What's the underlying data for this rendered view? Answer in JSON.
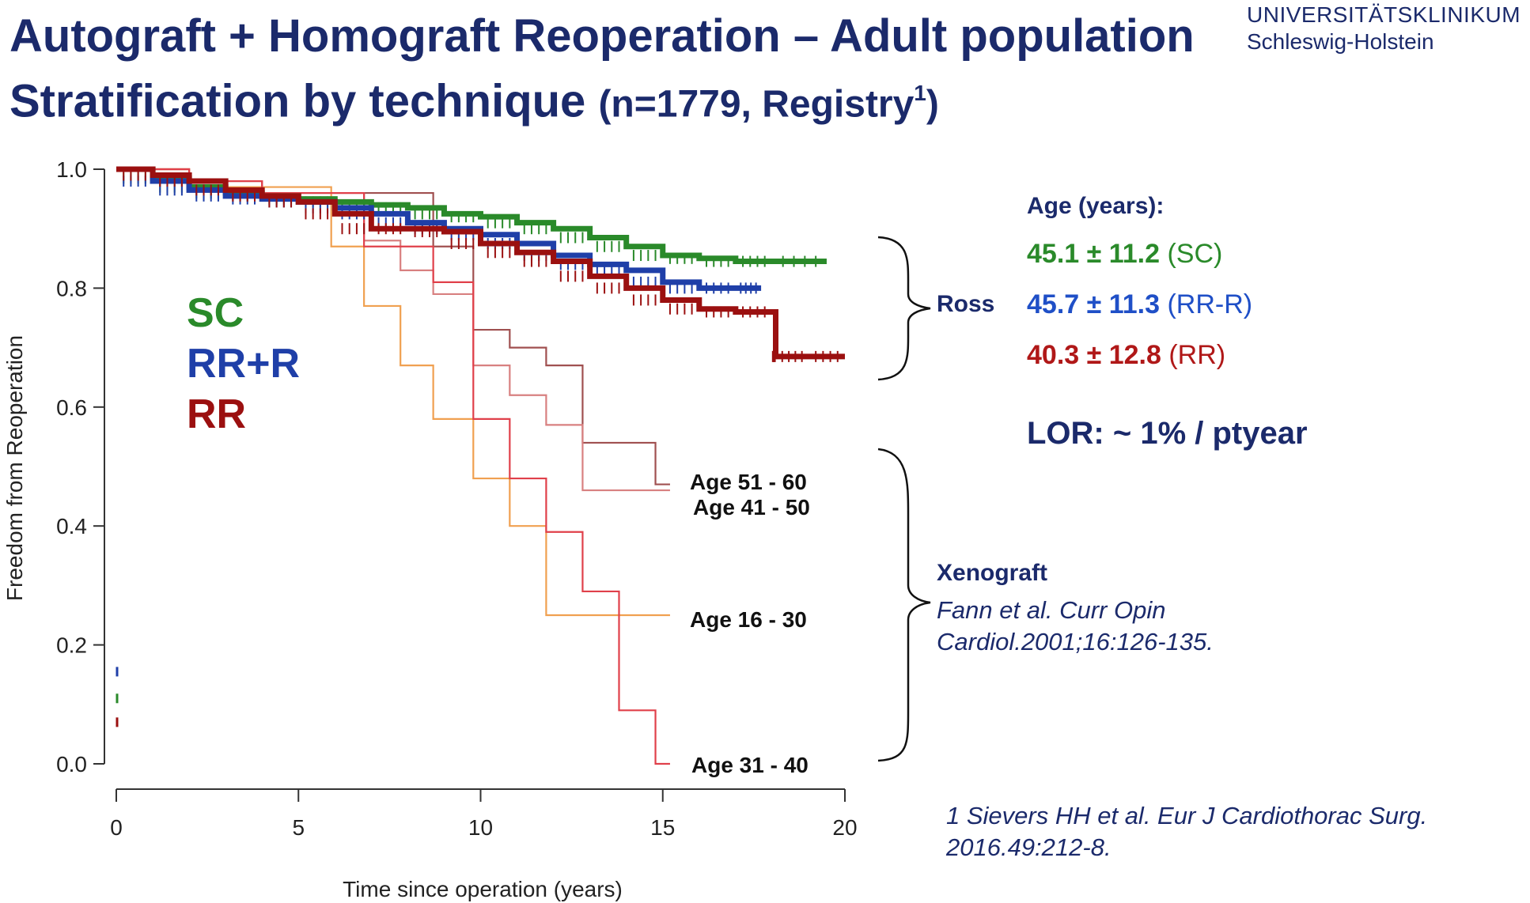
{
  "title": {
    "line1": "Autograft + Homograft Reoperation – Adult population",
    "line2_main": "Stratification by technique ",
    "line2_paren": "(n=1779, Registry",
    "line2_sup": "1",
    "line2_close": ")"
  },
  "institution": {
    "line1": "UNIVERSITÄTSKLINIKUM",
    "line2": "Schleswig-Holstein"
  },
  "legend": {
    "sc": "SC",
    "rrr": "RR+R",
    "rr": "RR"
  },
  "curve_labels": {
    "age_51_60": "Age 51 - 60",
    "age_41_50": "Age 41 - 50",
    "age_16_30": "Age 16 - 30",
    "age_31_40": "Age 31 - 40"
  },
  "side_panel": {
    "age_heading": "Age (years):",
    "sc_value": "45.1 ± 11.2",
    "sc_label": "(SC)",
    "rrr_value": "45.7 ± 11.3",
    "rrr_label": "(RR-R)",
    "rr_value": "40.3 ± 12.8",
    "rr_label": "(RR)",
    "ross_label": "Ross",
    "lor": "LOR: ~ 1% / ptyear",
    "xeno_label": "Xenograft",
    "xeno_ref1": "Fann et al. Curr Opin",
    "xeno_ref2": "Cardiol.2001;16:126-135."
  },
  "footnote": {
    "line1": "1 Sievers HH et al. Eur J Cardiothorac Surg.",
    "line2": "2016.49:212-8."
  },
  "colors": {
    "navy": "#1b2a6b",
    "sc": "#2a8a2a",
    "rrr": "#1f3fa8",
    "rr": "#9b1010",
    "age_16_30": "#f0a050",
    "age_31_40": "#e0404a",
    "age_41_50": "#d88080",
    "age_51_60": "#a05050"
  },
  "chart_data": {
    "type": "line",
    "title": "",
    "xlabel": "Time since operation (years)",
    "ylabel": "Freedom from Reoperation",
    "xlim": [
      0,
      20
    ],
    "ylim": [
      0,
      1
    ],
    "xticks": [
      0,
      5,
      10,
      15,
      20
    ],
    "yticks": [
      0.0,
      0.2,
      0.4,
      0.6,
      0.8,
      1.0
    ],
    "xtick_labels": [
      "0",
      "5",
      "10",
      "15",
      "20"
    ],
    "ytick_labels": [
      "0.0",
      "0.2",
      "0.4",
      "0.6",
      "0.8",
      "1.0"
    ],
    "series": [
      {
        "name": "SC",
        "kind": "survival",
        "color_key": "sc",
        "x": [
          0,
          1,
          2,
          3,
          4,
          5,
          6,
          7,
          8,
          9,
          10,
          11,
          12,
          13,
          14,
          15,
          16,
          17,
          18,
          19.5
        ],
        "y": [
          1.0,
          0.985,
          0.97,
          0.96,
          0.955,
          0.95,
          0.945,
          0.94,
          0.935,
          0.925,
          0.92,
          0.91,
          0.9,
          0.885,
          0.87,
          0.855,
          0.85,
          0.845,
          0.845,
          0.845
        ]
      },
      {
        "name": "RR+R",
        "kind": "survival",
        "color_key": "rrr",
        "x": [
          0,
          1,
          2,
          3,
          4,
          5,
          6,
          7,
          8,
          9,
          10,
          11,
          12,
          13,
          14,
          15,
          16,
          17,
          17.7
        ],
        "y": [
          1.0,
          0.98,
          0.965,
          0.955,
          0.95,
          0.945,
          0.935,
          0.925,
          0.91,
          0.9,
          0.89,
          0.875,
          0.855,
          0.84,
          0.83,
          0.81,
          0.8,
          0.8,
          0.8
        ]
      },
      {
        "name": "RR",
        "kind": "survival",
        "color_key": "rr",
        "x": [
          0,
          1,
          2,
          3,
          4,
          5,
          6,
          7,
          8,
          9,
          10,
          11,
          12,
          13,
          14,
          15,
          16,
          17,
          18,
          18.1,
          19,
          20
        ],
        "y": [
          1.0,
          0.99,
          0.98,
          0.965,
          0.955,
          0.945,
          0.925,
          0.9,
          0.9,
          0.895,
          0.875,
          0.86,
          0.845,
          0.82,
          0.8,
          0.78,
          0.765,
          0.76,
          0.76,
          0.685,
          0.685,
          0.685
        ]
      },
      {
        "name": "Age 51 - 60",
        "kind": "step",
        "color_key": "age_51_60",
        "x": [
          0,
          2,
          4,
          6.8,
          8.7,
          9.8,
          10.8,
          11.8,
          12.8,
          14.8,
          15.2
        ],
        "y": [
          1.0,
          0.98,
          0.96,
          0.96,
          0.87,
          0.73,
          0.7,
          0.67,
          0.54,
          0.47,
          0.47
        ]
      },
      {
        "name": "Age 41 - 50",
        "kind": "step",
        "color_key": "age_41_50",
        "x": [
          0,
          2,
          4,
          6.8,
          7.8,
          8.7,
          9.8,
          10.8,
          11.8,
          12.8,
          15.2
        ],
        "y": [
          1.0,
          0.98,
          0.96,
          0.88,
          0.83,
          0.79,
          0.67,
          0.62,
          0.57,
          0.46,
          0.46
        ]
      },
      {
        "name": "Age 16 - 30",
        "kind": "step",
        "color_key": "age_16_30",
        "x": [
          0,
          2,
          5.9,
          6.8,
          7.8,
          8.7,
          9.8,
          10.8,
          11.8,
          15.2
        ],
        "y": [
          1.0,
          0.97,
          0.87,
          0.77,
          0.67,
          0.58,
          0.48,
          0.4,
          0.25,
          0.25
        ]
      },
      {
        "name": "Age 31 - 40",
        "kind": "step",
        "color_key": "age_31_40",
        "x": [
          0,
          2,
          4,
          6.8,
          8.7,
          9.8,
          10.8,
          11.8,
          12.8,
          13.8,
          14.8,
          15.2
        ],
        "y": [
          1.0,
          0.98,
          0.96,
          0.87,
          0.81,
          0.58,
          0.48,
          0.39,
          0.29,
          0.09,
          0.0,
          0.0
        ]
      }
    ]
  }
}
